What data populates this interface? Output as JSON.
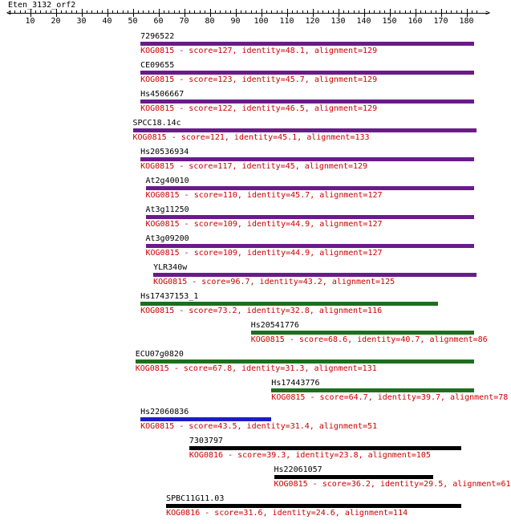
{
  "sequence": {
    "title": "Eten_3132_orf2"
  },
  "axis": {
    "min": 1,
    "max": 183,
    "ticks": [
      10,
      20,
      30,
      40,
      50,
      60,
      70,
      80,
      90,
      100,
      110,
      120,
      130,
      140,
      150,
      160,
      170,
      180
    ]
  },
  "colors": {
    "purple": "#6a1b8a",
    "green": "#1e6e1e",
    "blue": "#1c1cc8",
    "black": "#000000",
    "label_red": "#cc0000"
  },
  "hits": [
    {
      "name": "7296522",
      "desc": "KOG0815 - score=127, identity=48.1, alignment=129",
      "start": 53,
      "end": 183,
      "color": "purple"
    },
    {
      "name": "CE09655",
      "desc": "KOG0815 - score=123, identity=45.7, alignment=129",
      "start": 53,
      "end": 183,
      "color": "purple"
    },
    {
      "name": "Hs4506667",
      "desc": "KOG0815 - score=122, identity=46.5, alignment=129",
      "start": 53,
      "end": 183,
      "color": "purple"
    },
    {
      "name": "SPCC18.14c",
      "desc": "KOG0815 - score=121, identity=45.1, alignment=133",
      "start": 50,
      "end": 184,
      "color": "purple"
    },
    {
      "name": "Hs20536934",
      "desc": "KOG0815 - score=117, identity=45, alignment=129",
      "start": 53,
      "end": 183,
      "color": "purple"
    },
    {
      "name": "At2g40010",
      "desc": "KOG0815 - score=110, identity=45.7, alignment=127",
      "start": 55,
      "end": 183,
      "color": "purple"
    },
    {
      "name": "At3g11250",
      "desc": "KOG0815 - score=109, identity=44.9, alignment=127",
      "start": 55,
      "end": 183,
      "color": "purple"
    },
    {
      "name": "At3g09200",
      "desc": "KOG0815 - score=109, identity=44.9, alignment=127",
      "start": 55,
      "end": 183,
      "color": "purple"
    },
    {
      "name": "YLR340w",
      "desc": "KOG0815 - score=96.7, identity=43.2, alignment=125",
      "start": 58,
      "end": 184,
      "color": "purple"
    },
    {
      "name": "Hs17437153_1",
      "desc": "KOG0815 - score=73.2, identity=32.8, alignment=116",
      "start": 53,
      "end": 169,
      "color": "green"
    },
    {
      "name": "Hs20541776",
      "desc": "KOG0815 - score=68.6, identity=40.7, alignment=86",
      "start": 96,
      "end": 183,
      "color": "green"
    },
    {
      "name": "ECU07g0820",
      "desc": "KOG0815 - score=67.8, identity=31.3, alignment=131",
      "start": 51,
      "end": 183,
      "color": "green"
    },
    {
      "name": "Hs17443776",
      "desc": "KOG0815 - score=64.7, identity=39.7, alignment=78",
      "start": 104,
      "end": 183,
      "color": "green"
    },
    {
      "name": "Hs22060836",
      "desc": "KOG0815 - score=43.5, identity=31.4, alignment=51",
      "start": 53,
      "end": 104,
      "color": "blue"
    },
    {
      "name": "7303797",
      "desc": "KOG0816 - score=39.3, identity=23.8, alignment=105",
      "start": 72,
      "end": 178,
      "color": "black"
    },
    {
      "name": "Hs22061057",
      "desc": "KOG0815 - score=36.2, identity=29.5, alignment=61",
      "start": 105,
      "end": 167,
      "color": "black"
    },
    {
      "name": "SPBC11G11.03",
      "desc": "KOG0816 - score=31.6, identity=24.6, alignment=114",
      "start": 63,
      "end": 178,
      "color": "black"
    }
  ]
}
